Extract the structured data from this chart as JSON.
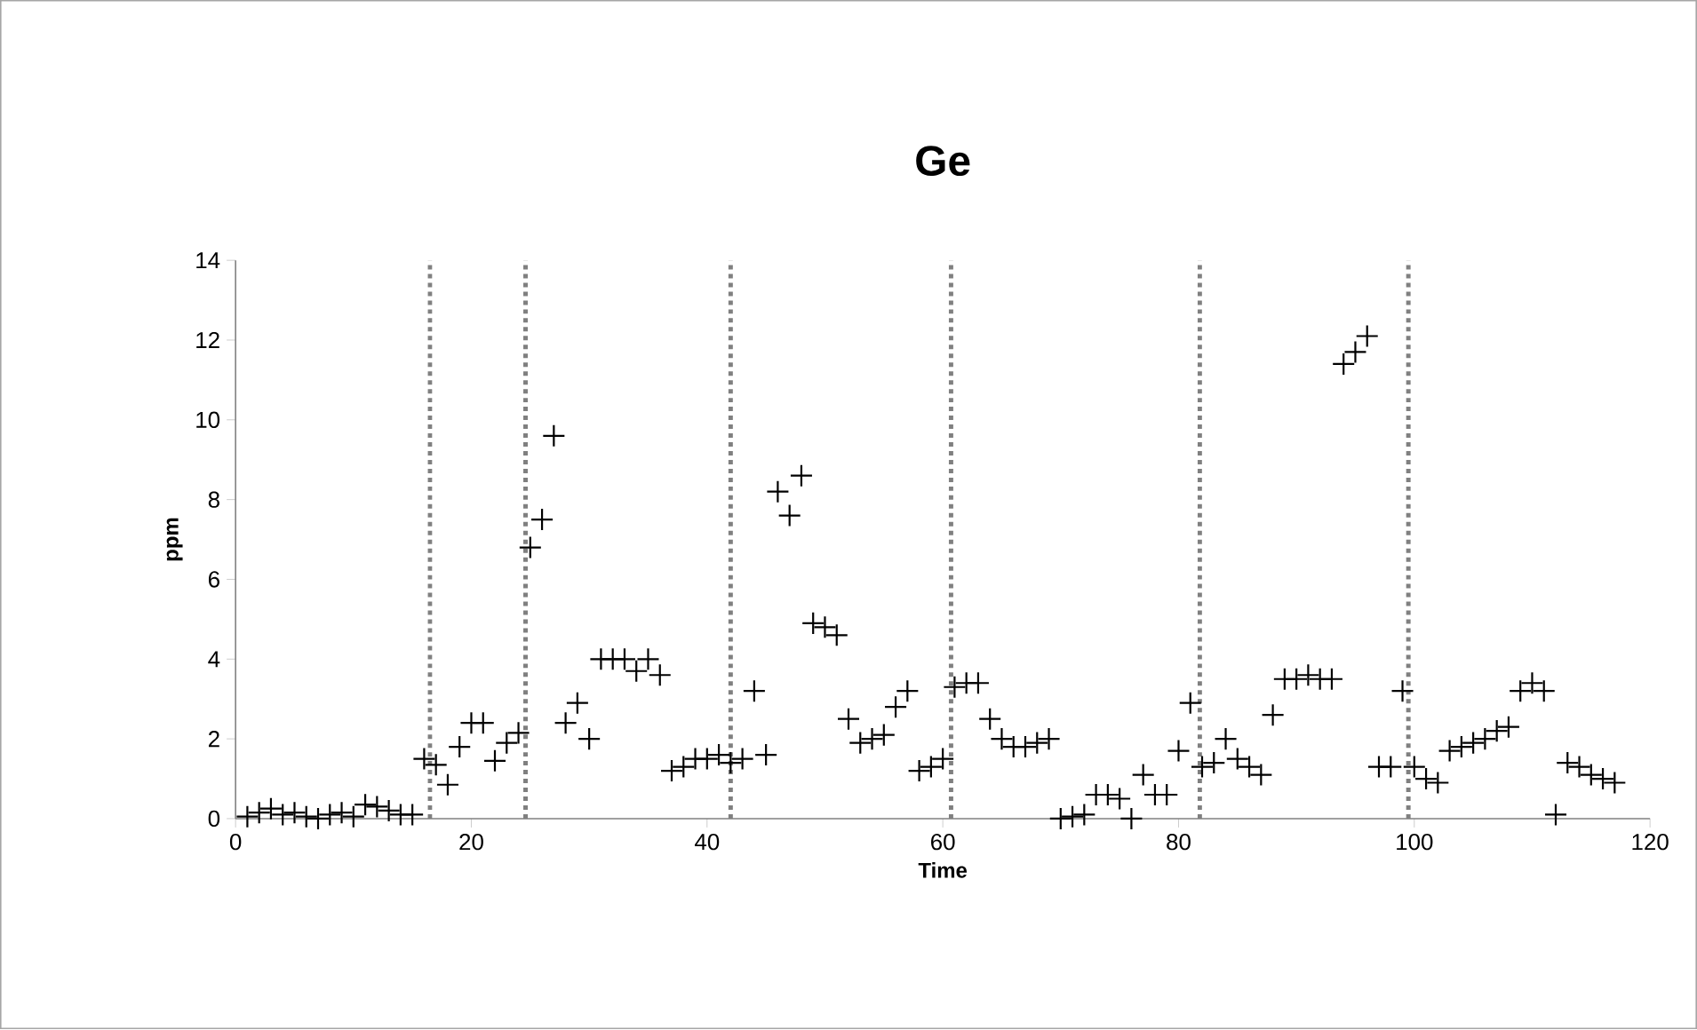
{
  "chart_data": {
    "type": "scatter",
    "title": "Ge",
    "xlabel": "Time",
    "ylabel": "ppm",
    "x": [
      1,
      2,
      3,
      4,
      5,
      6,
      7,
      8,
      9,
      10,
      11,
      12,
      13,
      14,
      15,
      16,
      17,
      18,
      19,
      20,
      21,
      22,
      23,
      24,
      25,
      26,
      27,
      28,
      29,
      30,
      31,
      32,
      33,
      34,
      35,
      36,
      37,
      38,
      39,
      40,
      41,
      42,
      43,
      44,
      45,
      46,
      47,
      48,
      49,
      50,
      51,
      52,
      53,
      54,
      55,
      56,
      57,
      58,
      59,
      60,
      61,
      62,
      63,
      64,
      65,
      66,
      67,
      68,
      69,
      70,
      71,
      72,
      73,
      74,
      75,
      76,
      77,
      78,
      79,
      80,
      81,
      82,
      83,
      84,
      85,
      86,
      87,
      88,
      89,
      90,
      91,
      92,
      93,
      94,
      95,
      96,
      97,
      98,
      99,
      100,
      101,
      102,
      103,
      104,
      105,
      106,
      107,
      108,
      109,
      110,
      111,
      112,
      113,
      114,
      115,
      116,
      117
    ],
    "series": [
      {
        "color": "#000000",
        "values": [
          0.05,
          0.15,
          0.25,
          0.1,
          0.15,
          0.05,
          0.0,
          0.1,
          0.15,
          0.05,
          0.35,
          0.3,
          0.2,
          0.1,
          0.1,
          1.5,
          1.35,
          0.85,
          1.8,
          2.4,
          2.4,
          1.45,
          1.9,
          2.15,
          6.8,
          7.5,
          9.6,
          2.4,
          2.9,
          2.0,
          4.0,
          4.0,
          4.0,
          3.7,
          4.0,
          3.6,
          1.2,
          1.3,
          1.5,
          1.5,
          1.6,
          1.4,
          1.5,
          3.2,
          1.6,
          8.2,
          7.6,
          8.6,
          4.9,
          4.8,
          4.6,
          2.5,
          1.9,
          2.0,
          2.1,
          2.8,
          3.2,
          1.2,
          1.3,
          1.5,
          3.3,
          3.4,
          3.4,
          2.5,
          2.0,
          1.8,
          1.8,
          1.9,
          2.0,
          0.0,
          0.05,
          0.1,
          0.6,
          0.6,
          0.5,
          0.0,
          1.1,
          0.6,
          0.6,
          1.7,
          2.9,
          1.3,
          1.4,
          2.0,
          1.5,
          1.3,
          1.1,
          2.6,
          3.5,
          3.5,
          3.6,
          3.5,
          3.5,
          11.4,
          11.7,
          12.1,
          1.3,
          1.3,
          3.2,
          1.3,
          1.0,
          0.9,
          1.7,
          1.8,
          1.9,
          2.0,
          2.2,
          2.3,
          3.2,
          3.4,
          3.2,
          0.1,
          1.4,
          1.3,
          1.1,
          1.0,
          0.9
        ]
      }
    ],
    "xlim": [
      0,
      120
    ],
    "xticks": [
      0,
      20,
      40,
      60,
      80,
      100,
      120
    ],
    "ylim": [
      0,
      14
    ],
    "yticks": [
      0,
      2,
      4,
      6,
      8,
      10,
      12,
      14
    ],
    "marker": "cross",
    "grid": false,
    "ref_lines": [
      {
        "axis": "x",
        "value": 16.5,
        "color": "#808080",
        "line_style": "dotted"
      },
      {
        "axis": "x",
        "value": 24.6,
        "color": "#808080",
        "line_style": "dotted"
      },
      {
        "axis": "x",
        "value": 42.0,
        "color": "#808080",
        "line_style": "dotted"
      },
      {
        "axis": "x",
        "value": 60.7,
        "color": "#808080",
        "line_style": "dotted"
      },
      {
        "axis": "x",
        "value": 81.8,
        "color": "#808080",
        "line_style": "dotted"
      },
      {
        "axis": "x",
        "value": 99.5,
        "color": "#808080",
        "line_style": "dotted"
      }
    ]
  }
}
